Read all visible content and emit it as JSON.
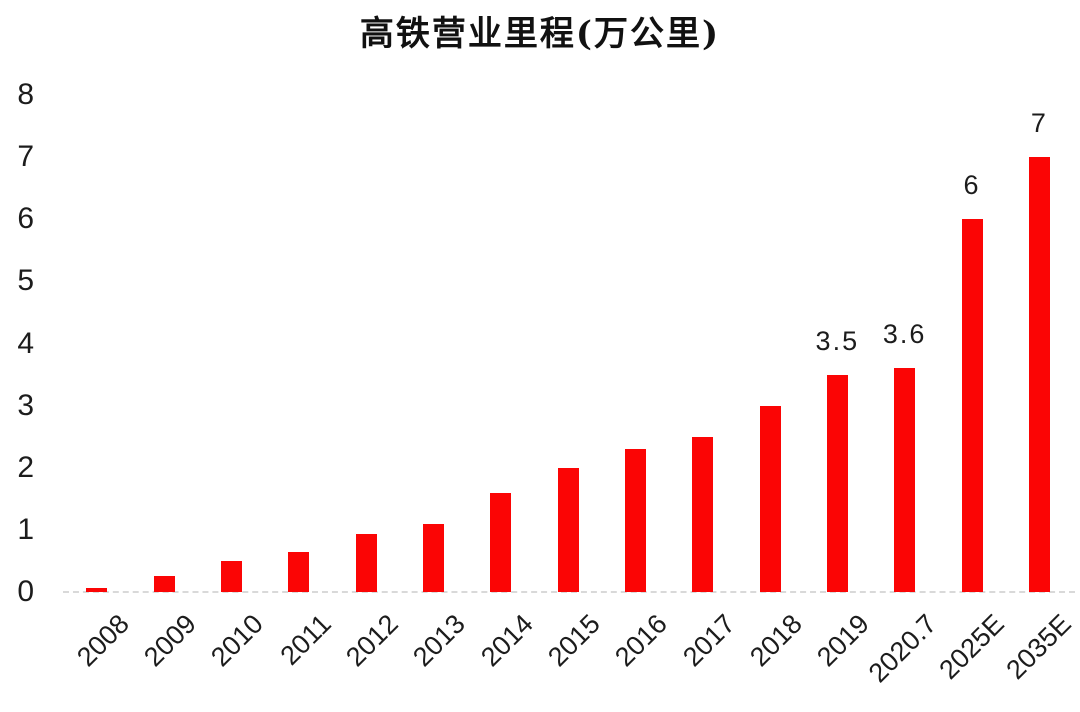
{
  "chart_data": {
    "type": "bar",
    "title": "高铁营业里程(万公里)",
    "categories": [
      "2008",
      "2009",
      "2010",
      "2011",
      "2012",
      "2013",
      "2014",
      "2015",
      "2016",
      "2017",
      "2018",
      "2019",
      "2020.7",
      "2025E",
      "2035E"
    ],
    "values": [
      0.07,
      0.25,
      0.5,
      0.65,
      0.93,
      1.1,
      1.6,
      2.0,
      2.3,
      2.5,
      3.0,
      3.5,
      3.6,
      6,
      7
    ],
    "bar_labels": [
      "",
      "",
      "",
      "",
      "",
      "",
      "",
      "",
      "",
      "",
      "",
      "3.5",
      "3.6",
      "6",
      "7"
    ],
    "xlabel": "",
    "ylabel": "",
    "ylim": [
      0,
      8
    ],
    "yticks": [
      0,
      1,
      2,
      3,
      4,
      5,
      6,
      7,
      8
    ],
    "grid": false,
    "legend": "none",
    "bar_color": "#fb0505",
    "axis_line_color": "#d9d9d9",
    "text_color": "#1c1c1c"
  }
}
